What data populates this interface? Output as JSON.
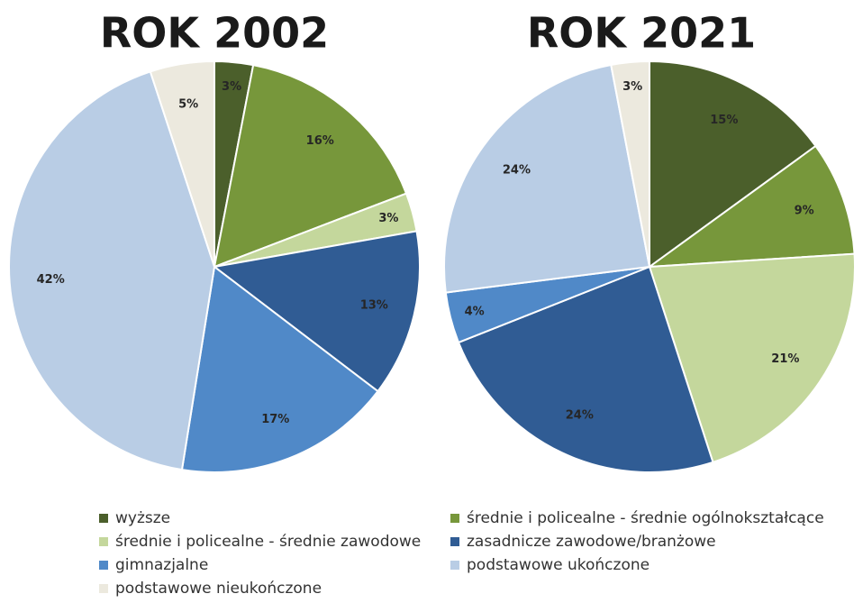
{
  "chart_data": [
    {
      "type": "pie",
      "title": "ROK 2002",
      "categories": [
        "wyższe",
        "średnie i policealne - średnie ogólnokształcące",
        "średnie i policealne - średnie zawodowe",
        "zasadnicze zawodowe/branżowe",
        "gimnazjalne",
        "podstawowe ukończone",
        "podstawowe nieukończone"
      ],
      "values": [
        3,
        16,
        3,
        13,
        17,
        42,
        5
      ],
      "value_labels": [
        "3%",
        "16%",
        "3%",
        "13%",
        "17%",
        "42%",
        "5%"
      ],
      "colors": [
        "#4b5f2b",
        "#77973b",
        "#c4d79c",
        "#305c94",
        "#5089c8",
        "#b9cde5",
        "#ece9de"
      ]
    },
    {
      "type": "pie",
      "title": "ROK 2021",
      "categories": [
        "wyższe",
        "średnie i policealne - średnie ogólnokształcące",
        "średnie i policealne - średnie zawodowe",
        "zasadnicze zawodowe/branżowe",
        "gimnazjalne",
        "podstawowe ukończone",
        "podstawowe nieukończone"
      ],
      "values": [
        15,
        9,
        21,
        24,
        4,
        24,
        3
      ],
      "value_labels": [
        "15%",
        "9%",
        "21%",
        "24%",
        "4%",
        "24%",
        "3%"
      ],
      "colors": [
        "#4b5f2b",
        "#77973b",
        "#c4d79c",
        "#305c94",
        "#5089c8",
        "#b9cde5",
        "#ece9de"
      ]
    }
  ]
}
